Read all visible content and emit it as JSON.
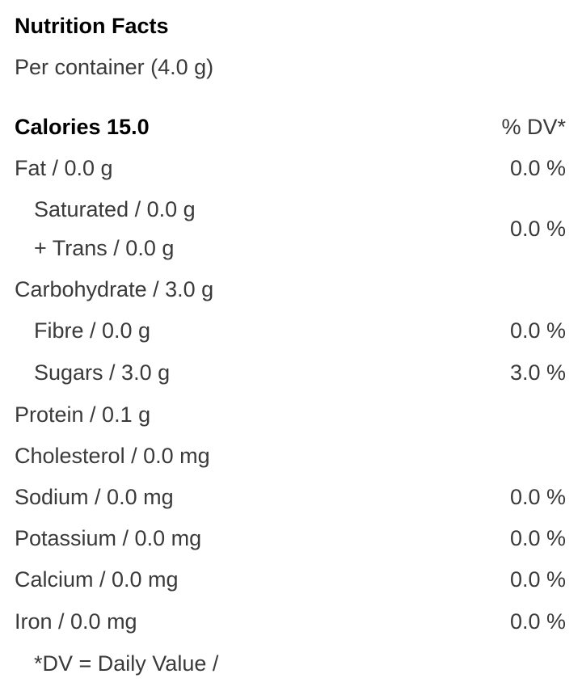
{
  "title": "Nutrition Facts",
  "serving": "Per container (4.0 g)",
  "calories": "Calories 15.0",
  "dv_header": "% DV*",
  "rows": [
    {
      "label": "Fat / 0.0 g",
      "dv": "0.0 %"
    },
    {
      "label": "Saturated / 0.0 g"
    },
    {
      "label": "+ Trans / 0.0 g",
      "dv": "0.0 %"
    },
    {
      "label": "Carbohydrate / 3.0 g"
    },
    {
      "label": "Fibre / 0.0 g",
      "dv": "0.0 %"
    },
    {
      "label": "Sugars / 3.0 g",
      "dv": "3.0 %"
    },
    {
      "label": "Protein / 0.1 g"
    },
    {
      "label": "Cholesterol / 0.0 mg"
    },
    {
      "label": "Sodium / 0.0 mg",
      "dv": "0.0 %"
    },
    {
      "label": "Potassium / 0.0 mg",
      "dv": "0.0 %"
    },
    {
      "label": "Calcium / 0.0 mg",
      "dv": "0.0 %"
    },
    {
      "label": "Iron / 0.0 mg",
      "dv": "0.0 %"
    }
  ],
  "footnote": "*DV = Daily Value /"
}
